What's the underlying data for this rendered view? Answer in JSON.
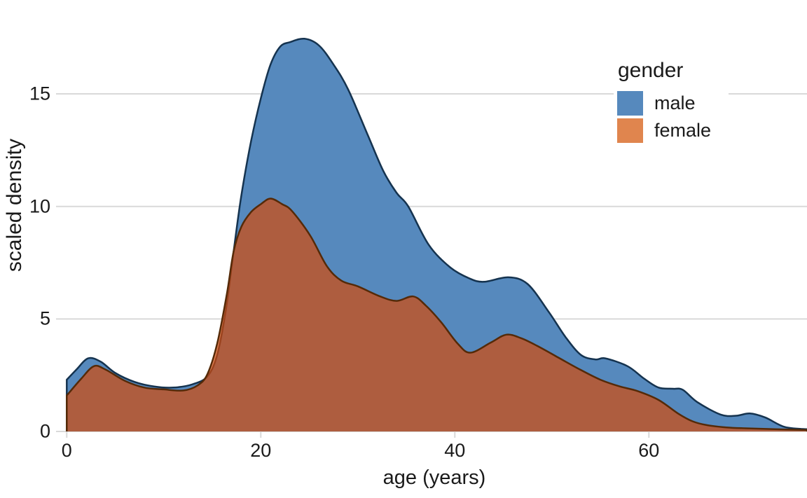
{
  "chart_data": {
    "type": "area",
    "title": "",
    "xlabel": "age (years)",
    "ylabel": "scaled density",
    "x_ticks": [
      0,
      20,
      40,
      60
    ],
    "y_ticks": [
      0,
      5,
      10,
      15
    ],
    "xlim": [
      0,
      76.3
    ],
    "ylim": [
      0,
      18.6
    ],
    "grid": "horizontal",
    "legend": {
      "title": "gender",
      "position": "top-right",
      "entries": [
        {
          "label": "male",
          "color": "#5689bd"
        },
        {
          "label": "female",
          "color": "#e0854e"
        }
      ]
    },
    "series": [
      {
        "name": "male",
        "fill": "#5689bd",
        "stroke": "#15334f",
        "points": [
          [
            0,
            2.3
          ],
          [
            1,
            2.75
          ],
          [
            2.2,
            3.25
          ],
          [
            3.5,
            3.1
          ],
          [
            5,
            2.6
          ],
          [
            7,
            2.2
          ],
          [
            9,
            2.0
          ],
          [
            11,
            1.95
          ],
          [
            13,
            2.1
          ],
          [
            14.5,
            2.45
          ],
          [
            15.5,
            3.4
          ],
          [
            16.4,
            5.4
          ],
          [
            17.2,
            8.0
          ],
          [
            18,
            10.5
          ],
          [
            19,
            12.9
          ],
          [
            20,
            14.8
          ],
          [
            21,
            16.3
          ],
          [
            22,
            17.1
          ],
          [
            23,
            17.3
          ],
          [
            24.5,
            17.45
          ],
          [
            26,
            17.15
          ],
          [
            27.5,
            16.3
          ],
          [
            29,
            15.2
          ],
          [
            31,
            13.2
          ],
          [
            32.6,
            11.6
          ],
          [
            34,
            10.6
          ],
          [
            35.2,
            10.0
          ],
          [
            37.3,
            8.3
          ],
          [
            39.5,
            7.3
          ],
          [
            41.5,
            6.8
          ],
          [
            43,
            6.65
          ],
          [
            45.5,
            6.85
          ],
          [
            47.5,
            6.55
          ],
          [
            49.7,
            5.3
          ],
          [
            51.4,
            4.2
          ],
          [
            53,
            3.4
          ],
          [
            54.5,
            3.2
          ],
          [
            55.5,
            3.25
          ],
          [
            57.8,
            2.9
          ],
          [
            59.5,
            2.35
          ],
          [
            61,
            1.95
          ],
          [
            62.5,
            1.9
          ],
          [
            63.5,
            1.85
          ],
          [
            65,
            1.3
          ],
          [
            67.4,
            0.75
          ],
          [
            69,
            0.7
          ],
          [
            70.4,
            0.8
          ],
          [
            72,
            0.62
          ],
          [
            74,
            0.2
          ],
          [
            76.3,
            0.1
          ]
        ]
      },
      {
        "name": "female",
        "fill": "rgba(212,74,10,0.7)",
        "stroke": "#552a08",
        "points": [
          [
            0,
            1.6
          ],
          [
            1.5,
            2.35
          ],
          [
            2.8,
            2.9
          ],
          [
            4,
            2.75
          ],
          [
            6,
            2.25
          ],
          [
            8,
            1.95
          ],
          [
            10,
            1.87
          ],
          [
            12,
            1.82
          ],
          [
            13.5,
            2.05
          ],
          [
            14.5,
            2.55
          ],
          [
            15.5,
            3.9
          ],
          [
            16.5,
            6.1
          ],
          [
            17.2,
            8.0
          ],
          [
            18,
            9.1
          ],
          [
            19,
            9.75
          ],
          [
            20,
            10.1
          ],
          [
            21,
            10.35
          ],
          [
            22.2,
            10.1
          ],
          [
            23.2,
            9.8
          ],
          [
            25.1,
            8.7
          ],
          [
            26.8,
            7.35
          ],
          [
            28.3,
            6.7
          ],
          [
            30,
            6.45
          ],
          [
            32.3,
            6.0
          ],
          [
            34,
            5.8
          ],
          [
            35.7,
            6.0
          ],
          [
            37,
            5.6
          ],
          [
            38.6,
            4.85
          ],
          [
            40.3,
            3.9
          ],
          [
            41.6,
            3.5
          ],
          [
            43.7,
            3.95
          ],
          [
            45.3,
            4.3
          ],
          [
            46.8,
            4.15
          ],
          [
            48.5,
            3.8
          ],
          [
            50.6,
            3.3
          ],
          [
            52.9,
            2.75
          ],
          [
            55,
            2.3
          ],
          [
            57,
            2.0
          ],
          [
            58.8,
            1.8
          ],
          [
            61,
            1.4
          ],
          [
            63,
            0.8
          ],
          [
            64.5,
            0.45
          ],
          [
            66,
            0.28
          ],
          [
            68,
            0.18
          ],
          [
            70,
            0.14
          ],
          [
            73,
            0.1
          ],
          [
            76.3,
            0.07
          ]
        ]
      }
    ]
  },
  "colors": {
    "background": "#ffffff",
    "gridline": "#d9d9d9",
    "text": "#1a1a1a",
    "male_fill": "#5689bd",
    "male_stroke": "#15334f",
    "female_fill": "rgba(212,74,10,0.7)",
    "female_stroke": "#552a08",
    "female_over_white": "#e0854e",
    "overlap_apparent": "#a65c35"
  }
}
